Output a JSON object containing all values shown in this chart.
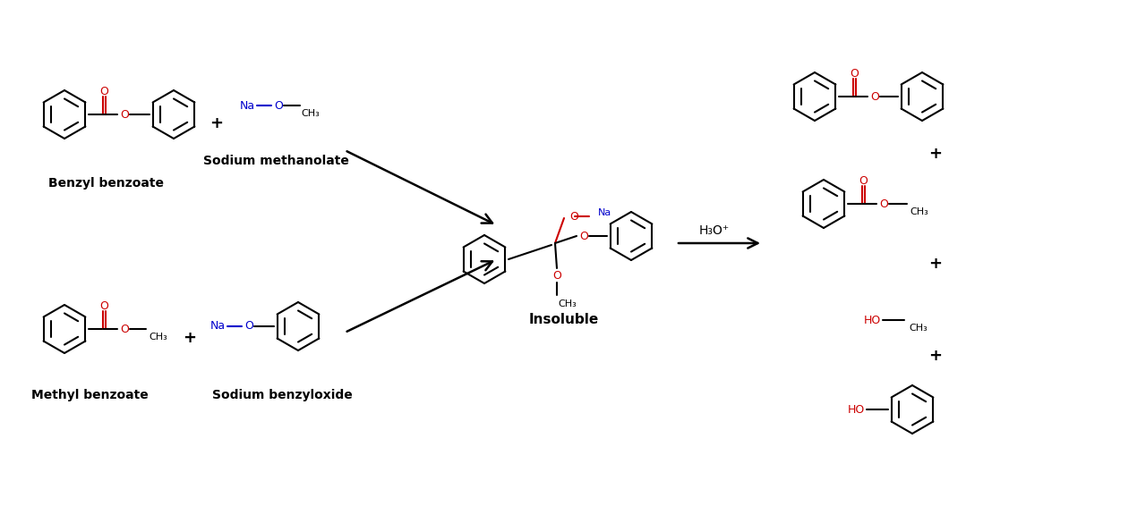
{
  "background_color": "#ffffff",
  "black": "#000000",
  "red": "#cc0000",
  "blue": "#0000cc",
  "fig_width": 12.7,
  "fig_height": 5.66,
  "labels": {
    "benzyl_benzoate": "Benzyl benzoate",
    "sodium_methanolate": "Sodium methanolate",
    "methyl_benzoate": "Methyl benzoate",
    "sodium_benzyloxide": "Sodium benzyloxide",
    "insoluble": "Insoluble",
    "h3o_plus": "H₃O⁺"
  }
}
